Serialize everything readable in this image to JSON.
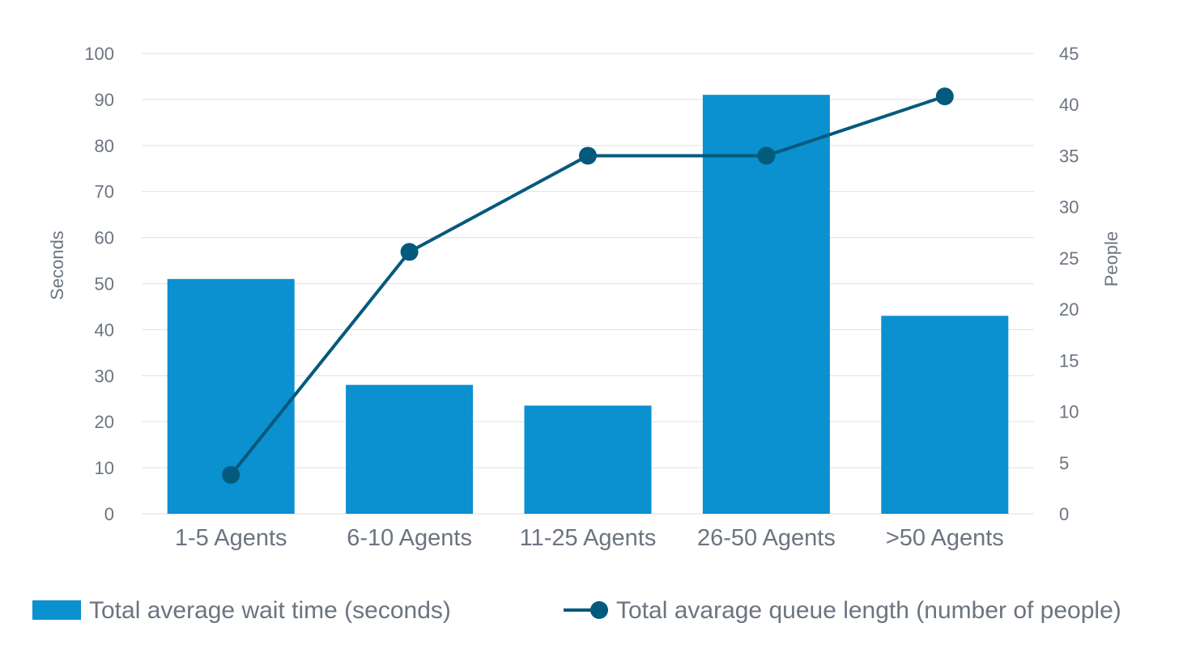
{
  "chart_data": {
    "type": "bar",
    "title": "",
    "categories": [
      "1-5 Agents",
      "6-10 Agents",
      "11-25 Agents",
      "26-50 Agents",
      ">50 Agents"
    ],
    "series": [
      {
        "name": "Total average wait time (seconds)",
        "type": "bar",
        "axis": "left",
        "values": [
          51,
          28,
          23.5,
          91,
          43
        ]
      },
      {
        "name": "Total avarage queue length (number of people)",
        "type": "line",
        "axis": "right",
        "values": [
          3.8,
          25.6,
          35,
          35,
          40.8
        ]
      }
    ],
    "y_left": {
      "label": "Seconds",
      "range": [
        0,
        100
      ],
      "ticks": [
        0,
        10,
        20,
        30,
        40,
        50,
        60,
        70,
        80,
        90,
        100
      ]
    },
    "y_right": {
      "label": "People",
      "range": [
        0,
        45
      ],
      "ticks": [
        0,
        5,
        10,
        15,
        20,
        25,
        30,
        35,
        40,
        45
      ]
    },
    "xlabel": "",
    "grid": true,
    "legend_position": "bottom",
    "colors": {
      "bar": "#0b90d0",
      "line": "#045a7c",
      "grid": "#e3e5e8",
      "text": "#6b7480"
    }
  }
}
